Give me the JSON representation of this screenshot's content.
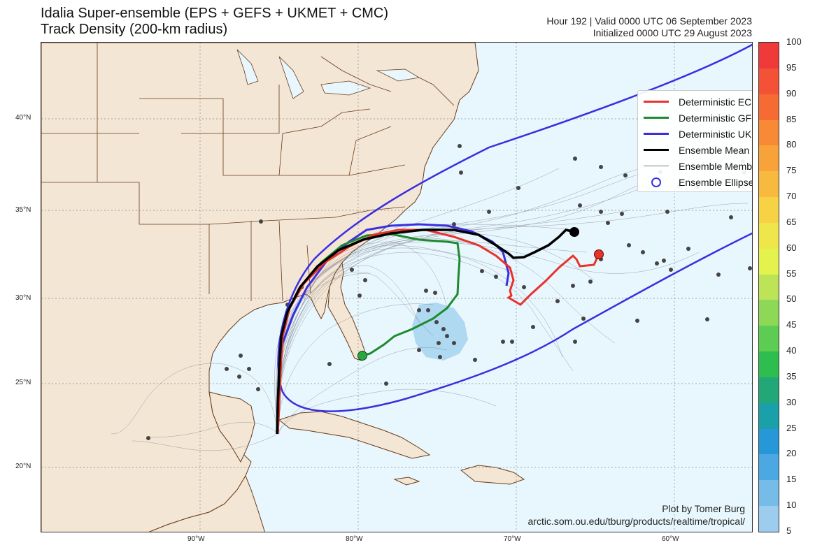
{
  "header": {
    "title_line1": "Idalia Super-ensemble (EPS + GEFS + UKMET + CMC)",
    "title_line2": "Track Density (200-km radius)",
    "valid": "Hour 192 | Valid 0000 UTC 06 September 2023",
    "initialized": "Initialized 0000 UTC 29 August 2023"
  },
  "axes": {
    "lat_labels": [
      "40°N",
      "35°N",
      "30°N",
      "25°N",
      "20°N"
    ],
    "lon_labels": [
      "90°W",
      "80°W",
      "70°W",
      "60°W"
    ]
  },
  "legend": {
    "items": [
      {
        "label": "Deterministic ECMWF",
        "color": "#e8322c",
        "style": "line"
      },
      {
        "label": "Deterministic GFS",
        "color": "#1e8a2e",
        "style": "line"
      },
      {
        "label": "Deterministic UKMET",
        "color": "#3b2ee0",
        "style": "line"
      },
      {
        "label": "Ensemble Mean",
        "color": "#000000",
        "style": "line"
      },
      {
        "label": "Ensemble Members",
        "color": "#7a7a88",
        "style": "thin"
      },
      {
        "label": "Ensemble Ellipse",
        "color": "#3b2ee0",
        "style": "circle"
      }
    ]
  },
  "colorbar": {
    "labels": [
      "100",
      "95",
      "90",
      "85",
      "80",
      "75",
      "70",
      "65",
      "60",
      "55",
      "50",
      "45",
      "40",
      "35",
      "30",
      "25",
      "20",
      "15",
      "10",
      "5"
    ],
    "colors": [
      "#f03a3a",
      "#f45236",
      "#f66a34",
      "#f88a36",
      "#f8a23a",
      "#f8ba3e",
      "#f6d244",
      "#eee64a",
      "#e4f24e",
      "#bce456",
      "#8ed858",
      "#5ccc52",
      "#2ebe50",
      "#22a878",
      "#1aa0a8",
      "#2698d8",
      "#4ba8e2",
      "#76bce8",
      "#9ccdee",
      "#c0def4"
    ]
  },
  "credit": {
    "line1": "Plot by Tomer Burg",
    "line2": "arctic.som.ou.edu/tburg/products/realtime/tropical/"
  }
}
